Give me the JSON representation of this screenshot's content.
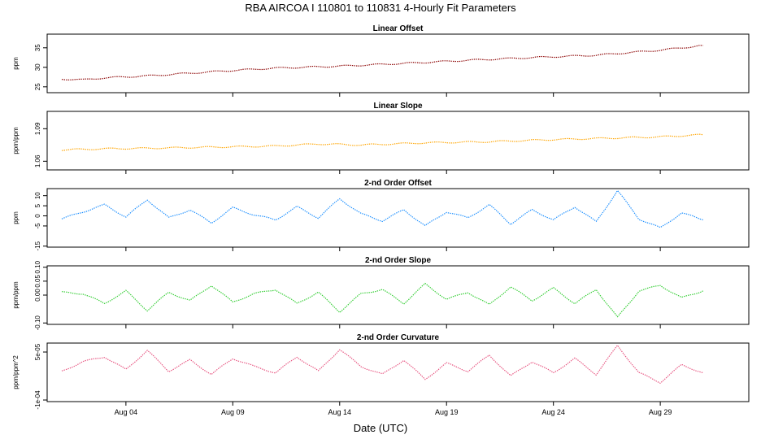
{
  "title": "RBA   AIRCOA I   110801 to 110831   4-Hourly Fit Parameters",
  "xlabel": "Date (UTC)",
  "x_ticks": [
    "Aug 04",
    "Aug 09",
    "Aug 14",
    "Aug 19",
    "Aug 24",
    "Aug 29"
  ],
  "chart_data": [
    {
      "type": "line",
      "title": "Linear Offset",
      "ylabel": "ppm",
      "yticks": [
        "25",
        "30",
        "35"
      ],
      "ylim": [
        23.5,
        38.5
      ],
      "xlim": [
        "2011-08-01",
        "2011-08-31"
      ],
      "color": "#8b0000",
      "series": [
        {
          "x": [
            "2011-08-01",
            "2011-08-02",
            "2011-08-03",
            "2011-08-05",
            "2011-08-07",
            "2011-08-09",
            "2011-08-11",
            "2011-08-14",
            "2011-08-17",
            "2011-08-20",
            "2011-08-23",
            "2011-08-26",
            "2011-08-29",
            "2011-08-31"
          ],
          "values": [
            27.0,
            26.8,
            27.3,
            27.8,
            28.5,
            29.2,
            29.8,
            30.3,
            31.0,
            31.8,
            32.5,
            33.1,
            34.4,
            35.6
          ]
        }
      ]
    },
    {
      "type": "line",
      "title": "Linear Slope",
      "ylabel": "ppm/ppm",
      "yticks": [
        "1.06",
        "1.09"
      ],
      "ylim": [
        1.052,
        1.106
      ],
      "xlim": [
        "2011-08-01",
        "2011-08-31"
      ],
      "color": "#ffa500",
      "series": [
        {
          "x": [
            "2011-08-01",
            "2011-08-03",
            "2011-08-05",
            "2011-08-08",
            "2011-08-11",
            "2011-08-13",
            "2011-08-15",
            "2011-08-18",
            "2011-08-21",
            "2011-08-24",
            "2011-08-27",
            "2011-08-29",
            "2011-08-31"
          ],
          "values": [
            1.0705,
            1.0715,
            1.072,
            1.073,
            1.074,
            1.076,
            1.075,
            1.077,
            1.078,
            1.08,
            1.0815,
            1.0825,
            1.0845
          ]
        }
      ]
    },
    {
      "type": "line",
      "title": "2-nd Order Offset",
      "ylabel": "ppm",
      "yticks": [
        "-15",
        "-5",
        "0",
        "5",
        "10"
      ],
      "ylim": [
        -15.5,
        13.5
      ],
      "xlim": [
        "2011-08-01",
        "2011-08-31"
      ],
      "color": "#1e90ff",
      "series": [
        {
          "x": [
            "2011-08-01",
            "2011-08-02",
            "2011-08-03",
            "2011-08-04",
            "2011-08-05",
            "2011-08-06",
            "2011-08-07",
            "2011-08-08",
            "2011-08-09",
            "2011-08-10",
            "2011-08-11",
            "2011-08-12",
            "2011-08-13",
            "2011-08-14",
            "2011-08-15",
            "2011-08-16",
            "2011-08-17",
            "2011-08-18",
            "2011-08-19",
            "2011-08-20",
            "2011-08-21",
            "2011-08-22",
            "2011-08-23",
            "2011-08-24",
            "2011-08-25",
            "2011-08-26",
            "2011-08-27",
            "2011-08-28",
            "2011-08-29",
            "2011-08-30",
            "2011-08-31"
          ],
          "values": [
            -1.5,
            2.0,
            5.5,
            -0.5,
            8.0,
            -1.0,
            3.0,
            -3.5,
            4.0,
            0.5,
            -2.0,
            4.5,
            -1.0,
            8.5,
            1.0,
            -2.5,
            3.0,
            -5.0,
            2.0,
            -1.0,
            5.5,
            -4.0,
            3.0,
            -2.0,
            4.5,
            -3.0,
            12.5,
            -1.5,
            -6.0,
            1.5,
            -2.0
          ]
        }
      ]
    },
    {
      "type": "line",
      "title": "2-nd Order Slope",
      "ylabel": "ppm/ppm",
      "yticks": [
        "-0.10",
        "0.00",
        "0.05",
        "0.10"
      ],
      "ylim": [
        -0.105,
        0.105
      ],
      "xlim": [
        "2011-08-01",
        "2011-08-31"
      ],
      "color": "#32cd32",
      "series": [
        {
          "x": [
            "2011-08-01",
            "2011-08-02",
            "2011-08-03",
            "2011-08-04",
            "2011-08-05",
            "2011-08-06",
            "2011-08-07",
            "2011-08-08",
            "2011-08-09",
            "2011-08-10",
            "2011-08-11",
            "2011-08-12",
            "2011-08-13",
            "2011-08-14",
            "2011-08-15",
            "2011-08-16",
            "2011-08-17",
            "2011-08-18",
            "2011-08-19",
            "2011-08-20",
            "2011-08-21",
            "2011-08-22",
            "2011-08-23",
            "2011-08-24",
            "2011-08-25",
            "2011-08-26",
            "2011-08-27",
            "2011-08-28",
            "2011-08-29",
            "2011-08-30",
            "2011-08-31"
          ],
          "values": [
            0.01,
            0.005,
            -0.03,
            0.015,
            -0.055,
            0.01,
            -0.02,
            0.035,
            -0.025,
            0.005,
            0.02,
            -0.03,
            0.01,
            -0.06,
            0.005,
            0.02,
            -0.03,
            0.04,
            -0.015,
            0.01,
            -0.035,
            0.03,
            -0.02,
            0.025,
            -0.03,
            0.02,
            -0.08,
            0.015,
            0.035,
            -0.01,
            0.015
          ]
        }
      ]
    },
    {
      "type": "line",
      "title": "2-nd Order Curvature",
      "ylabel": "ppm/ppm^2",
      "yticks": [
        "-1e-04",
        "5e-05"
      ],
      "ylim": [
        -0.000105,
        7.8e-05
      ],
      "xlim": [
        "2011-08-01",
        "2011-08-31"
      ],
      "color": "#e75480",
      "series": [
        {
          "x": [
            "2011-08-01",
            "2011-08-02",
            "2011-08-03",
            "2011-08-04",
            "2011-08-05",
            "2011-08-06",
            "2011-08-07",
            "2011-08-08",
            "2011-08-09",
            "2011-08-10",
            "2011-08-11",
            "2011-08-12",
            "2011-08-13",
            "2011-08-14",
            "2011-08-15",
            "2011-08-16",
            "2011-08-17",
            "2011-08-18",
            "2011-08-19",
            "2011-08-20",
            "2011-08-21",
            "2011-08-22",
            "2011-08-23",
            "2011-08-24",
            "2011-08-25",
            "2011-08-26",
            "2011-08-27",
            "2011-08-28",
            "2011-08-29",
            "2011-08-30",
            "2011-08-31"
          ],
          "values": [
            -1e-05,
            2e-05,
            3.5e-05,
            -5e-06,
            5.5e-05,
            -1e-05,
            2.5e-05,
            -2e-05,
            3e-05,
            5e-06,
            -1.5e-05,
            3.5e-05,
            -1e-05,
            5.8e-05,
            5e-06,
            -2e-05,
            2.5e-05,
            -3.5e-05,
            1.5e-05,
            -1e-05,
            4e-05,
            -2.5e-05,
            2e-05,
            -1.5e-05,
            3e-05,
            -2e-05,
            7e-05,
            -1.5e-05,
            -4.5e-05,
            1e-05,
            -1.5e-05
          ]
        }
      ]
    }
  ]
}
